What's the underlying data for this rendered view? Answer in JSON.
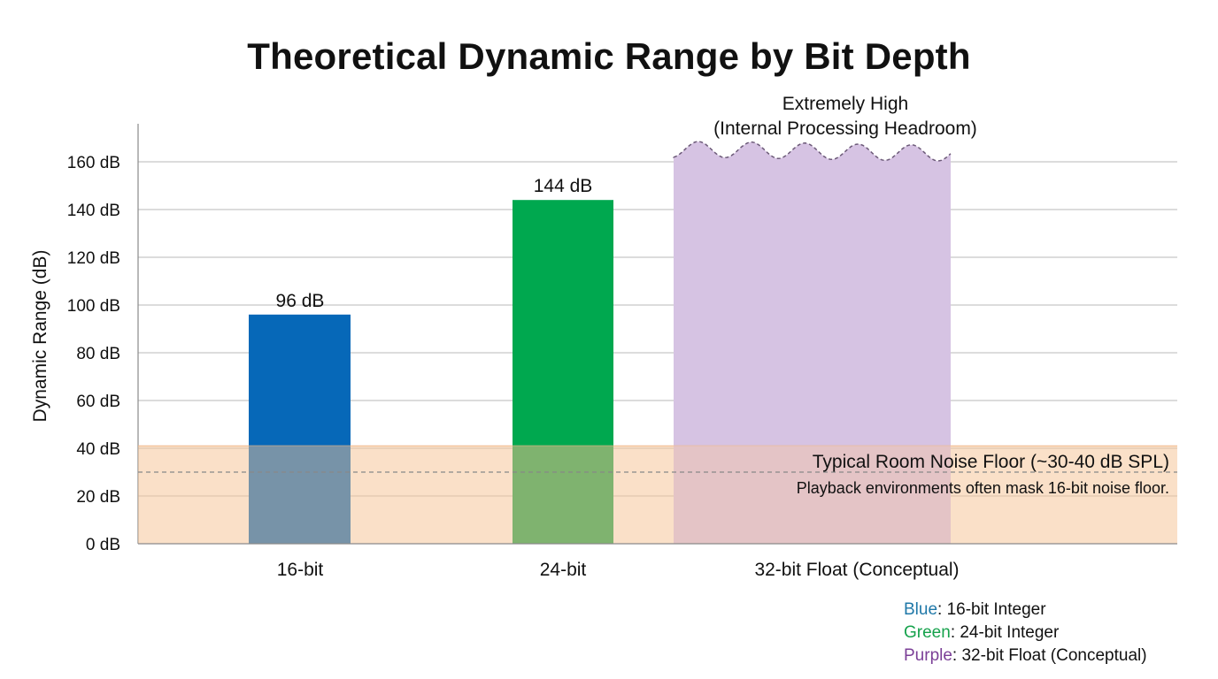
{
  "chart_data": {
    "type": "bar",
    "title": "Theoretical Dynamic Range by Bit Depth",
    "ylabel": "Dynamic Range (dB)",
    "xlabel": "",
    "ylim": [
      0,
      160
    ],
    "yticks": [
      0,
      20,
      40,
      60,
      80,
      100,
      120,
      140,
      160
    ],
    "ytick_labels": [
      "0 dB",
      "20 dB",
      "40 dB",
      "60 dB",
      "80 dB",
      "100 dB",
      "120 dB",
      "140 dB",
      "160 dB"
    ],
    "grid": true,
    "categories": [
      "16-bit",
      "24-bit",
      "32-bit Float (Conceptual)"
    ],
    "values": [
      96,
      144,
      165
    ],
    "bar_labels": [
      "96 dB",
      "144 dB",
      ""
    ],
    "colors": [
      "#0668b8",
      "#00a84f",
      "#d6c3e3"
    ],
    "overlay_colors": [
      "#7793a8",
      "#7fb36f",
      "#e4c4c6"
    ],
    "extreme_annotation": [
      "Extremely High",
      "(Internal Processing Headroom)"
    ],
    "noise_floor": {
      "band": [
        0,
        41
      ],
      "line": 30,
      "color": "#f5c69b",
      "label": "Typical Room Noise Floor (~30-40 dB SPL)",
      "note": "Playback environments often mask 16-bit noise floor."
    },
    "legend": [
      {
        "color_word": "Blue",
        "text": ": 16-bit Integer",
        "color": "#1f78a8"
      },
      {
        "color_word": "Green",
        "text": ": 24-bit Integer",
        "color": "#16a24c"
      },
      {
        "color_word": "Purple",
        "text": ": 32-bit Float (Conceptual)",
        "color": "#7b3f97"
      }
    ],
    "legend_position": "bottom-right"
  }
}
